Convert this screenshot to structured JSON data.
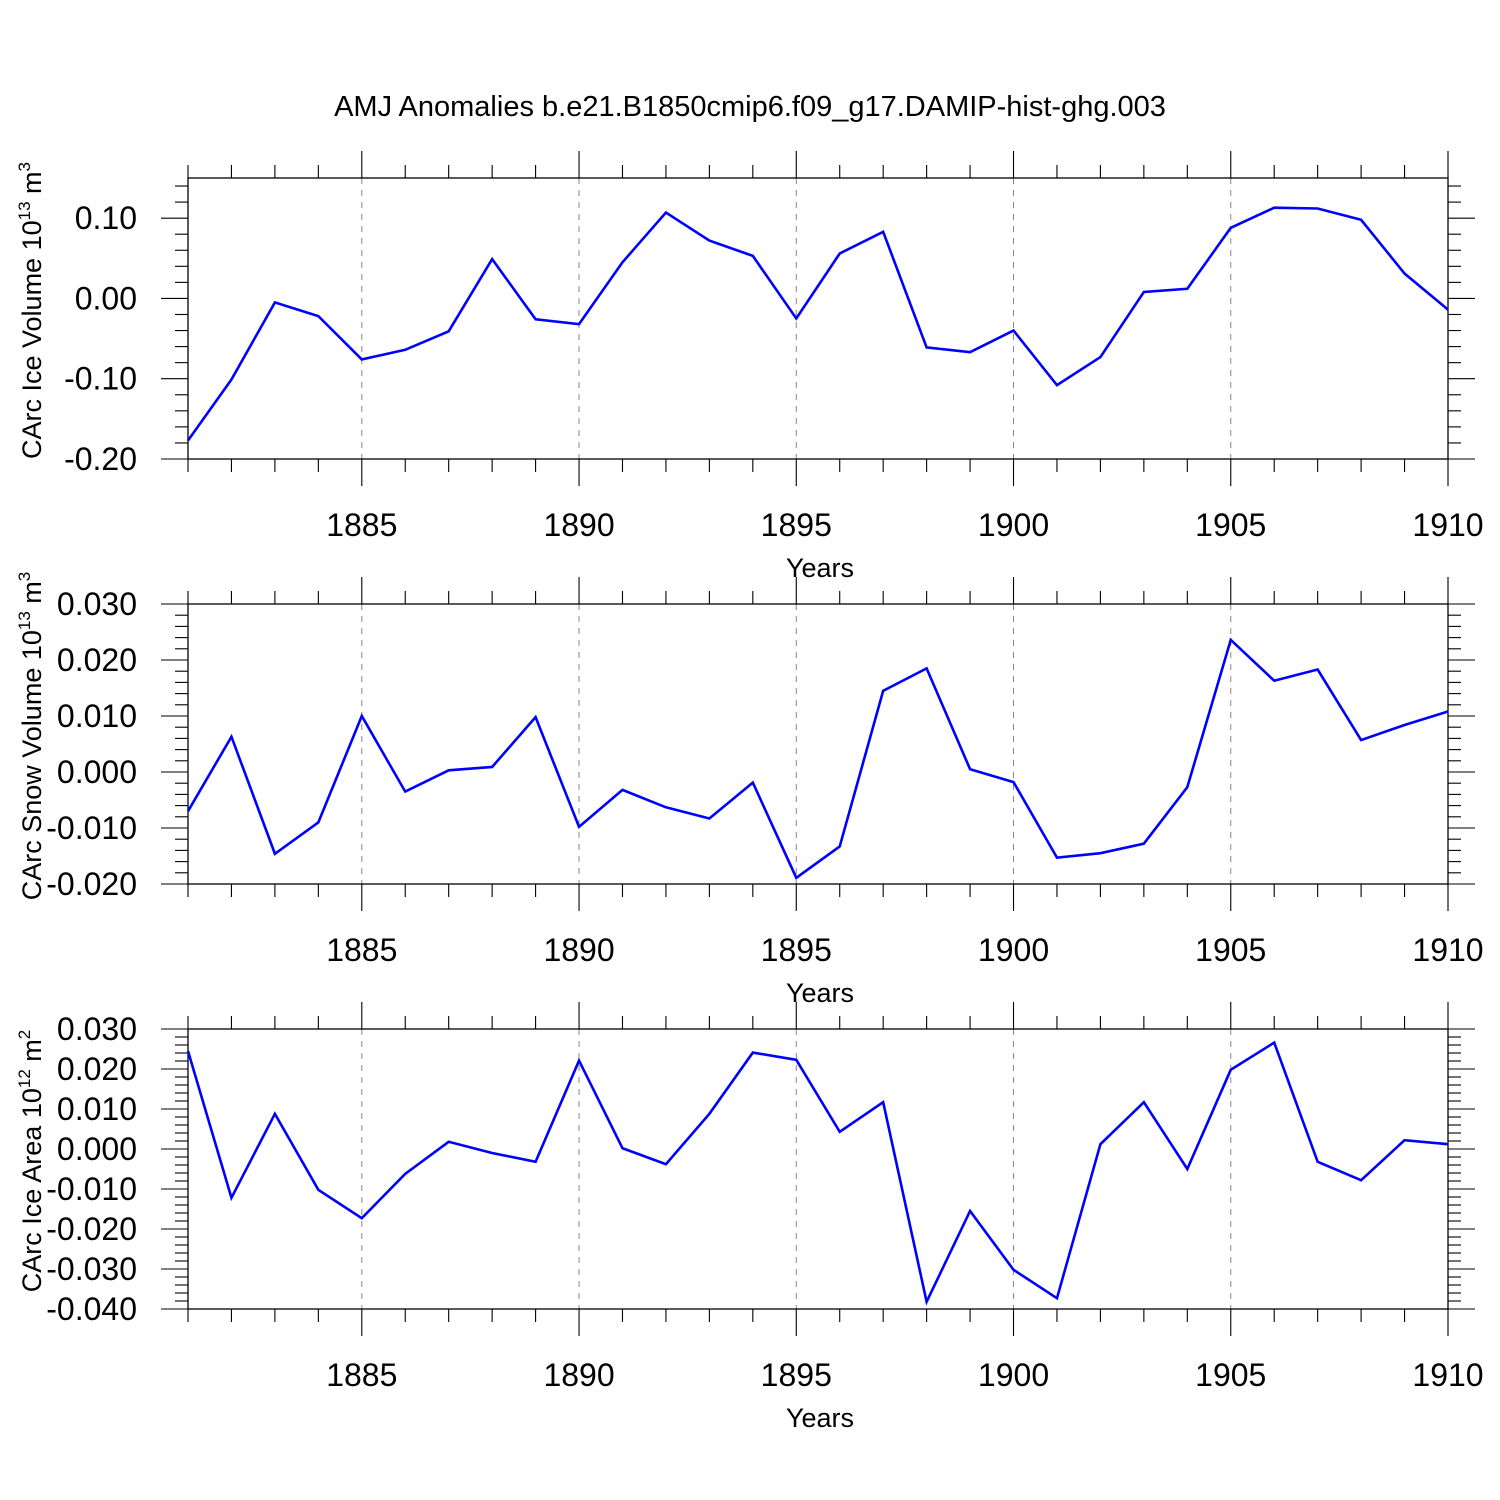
{
  "title": "AMJ Anomalies b.e21.B1850cmip6.f09_g17.DAMIP-hist-ghg.003",
  "colors": {
    "line": "#0000ff",
    "frame": "#000000",
    "grid": "#888888"
  },
  "chart_data": [
    {
      "type": "line",
      "id": "ice-volume",
      "ylabel": "CArc Ice Volume 10",
      "ylabel_exp": "13",
      "ylabel_unit": " m",
      "ylabel_unit_exp": "3",
      "xlabel": "Years",
      "xlim": [
        1881,
        1910
      ],
      "ylim": [
        -0.2,
        0.15
      ],
      "yticks": [
        -0.2,
        -0.1,
        0.0,
        0.1
      ],
      "ytick_labels": [
        "-0.20",
        "-0.10",
        "0.00",
        "0.10"
      ],
      "xticks": [
        1885,
        1890,
        1895,
        1900,
        1905,
        1910
      ],
      "xtick_labels": [
        "1885",
        "1890",
        "1895",
        "1900",
        "1905",
        "1910"
      ],
      "grid": "dashed vertical at major x ticks",
      "x": [
        1881,
        1882,
        1883,
        1884,
        1885,
        1886,
        1887,
        1888,
        1889,
        1890,
        1891,
        1892,
        1893,
        1894,
        1895,
        1896,
        1897,
        1898,
        1899,
        1900,
        1901,
        1902,
        1903,
        1904,
        1905,
        1906,
        1907,
        1908,
        1909,
        1910
      ],
      "values": [
        -0.177,
        -0.101,
        -0.005,
        -0.022,
        -0.076,
        -0.064,
        -0.041,
        0.049,
        -0.026,
        -0.032,
        0.045,
        0.107,
        0.072,
        0.053,
        -0.025,
        0.056,
        0.083,
        -0.061,
        -0.067,
        -0.04,
        -0.108,
        -0.073,
        0.008,
        0.012,
        0.088,
        0.113,
        0.112,
        0.098,
        0.031,
        -0.014
      ]
    },
    {
      "type": "line",
      "id": "snow-volume",
      "ylabel": "CArc Snow Volume 10",
      "ylabel_exp": "13",
      "ylabel_unit": " m",
      "ylabel_unit_exp": "3",
      "xlabel": "Years",
      "xlim": [
        1881,
        1910
      ],
      "ylim": [
        -0.02,
        0.03
      ],
      "yticks": [
        -0.02,
        -0.01,
        0.0,
        0.01,
        0.02,
        0.03
      ],
      "ytick_labels": [
        "-0.020",
        "-0.010",
        "0.000",
        "0.010",
        "0.020",
        "0.030"
      ],
      "xticks": [
        1885,
        1890,
        1895,
        1900,
        1905,
        1910
      ],
      "xtick_labels": [
        "1885",
        "1890",
        "1895",
        "1900",
        "1905",
        "1910"
      ],
      "grid": "dashed vertical at major x ticks",
      "x": [
        1881,
        1882,
        1883,
        1884,
        1885,
        1886,
        1887,
        1888,
        1889,
        1890,
        1891,
        1892,
        1893,
        1894,
        1895,
        1896,
        1897,
        1898,
        1899,
        1900,
        1901,
        1902,
        1903,
        1904,
        1905,
        1906,
        1907,
        1908,
        1909,
        1910
      ],
      "values": [
        -0.007,
        0.0063,
        -0.0146,
        -0.009,
        0.01,
        -0.0035,
        0.0003,
        0.0009,
        0.0098,
        -0.0098,
        -0.0032,
        -0.0063,
        -0.0083,
        -0.0019,
        -0.0189,
        -0.0133,
        0.0145,
        0.0185,
        0.0005,
        -0.0018,
        -0.0153,
        -0.0145,
        -0.0128,
        -0.0027,
        0.0236,
        0.0163,
        0.0183,
        0.0057,
        0.0084,
        0.0108
      ]
    },
    {
      "type": "line",
      "id": "ice-area",
      "ylabel": "CArc Ice Area 10",
      "ylabel_exp": "12",
      "ylabel_unit": " m",
      "ylabel_unit_exp": "2",
      "xlabel": "Years",
      "xlim": [
        1881,
        1910
      ],
      "ylim": [
        -0.04,
        0.03
      ],
      "yticks": [
        -0.04,
        -0.03,
        -0.02,
        -0.01,
        0.0,
        0.01,
        0.02,
        0.03
      ],
      "ytick_labels": [
        "-0.040",
        "-0.030",
        "-0.020",
        "-0.010",
        "0.000",
        "0.010",
        "0.020",
        "0.030"
      ],
      "xticks": [
        1885,
        1890,
        1895,
        1900,
        1905,
        1910
      ],
      "xtick_labels": [
        "1885",
        "1890",
        "1895",
        "1900",
        "1905",
        "1910"
      ],
      "grid": "dashed vertical at major x ticks",
      "x": [
        1881,
        1882,
        1883,
        1884,
        1885,
        1886,
        1887,
        1888,
        1889,
        1890,
        1891,
        1892,
        1893,
        1894,
        1895,
        1896,
        1897,
        1898,
        1899,
        1900,
        1901,
        1902,
        1903,
        1904,
        1905,
        1906,
        1907,
        1908,
        1909,
        1910
      ],
      "values": [
        0.0245,
        -0.0122,
        0.0088,
        -0.0102,
        -0.0173,
        -0.0062,
        0.0018,
        -0.001,
        -0.0032,
        0.0221,
        0.0002,
        -0.0038,
        0.0088,
        0.0241,
        0.0223,
        0.0043,
        0.0117,
        -0.0382,
        -0.0155,
        -0.0302,
        -0.0373,
        0.0012,
        0.0117,
        -0.005,
        0.0198,
        0.0266,
        -0.0032,
        -0.0078,
        0.0022,
        0.0012
      ]
    }
  ]
}
